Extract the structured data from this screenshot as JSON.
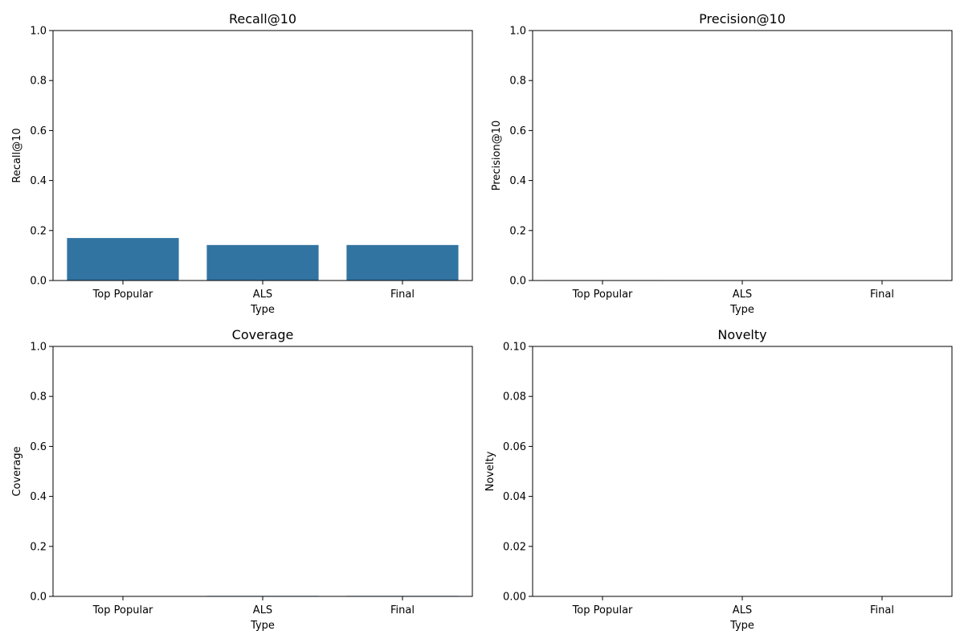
{
  "chart_data": [
    {
      "type": "bar",
      "title": "Recall@10",
      "xlabel": "Type",
      "ylabel": "Recall@10",
      "categories": [
        "Top Popular",
        "ALS",
        "Final"
      ],
      "values": [
        0.17,
        0.142,
        0.142
      ],
      "ylim": [
        0,
        1
      ],
      "yticks": [
        "0.0",
        "0.2",
        "0.4",
        "0.6",
        "0.8",
        "1.0"
      ],
      "color": "#3274a1",
      "grid": false
    },
    {
      "type": "bar",
      "title": "Precision@10",
      "xlabel": "Type",
      "ylabel": "Precision@10",
      "categories": [
        "Top Popular",
        "ALS",
        "Final"
      ],
      "values": [
        0.0017,
        0.0014,
        0.0014
      ],
      "ylim": [
        0,
        1
      ],
      "yticks": [
        "0.0",
        "0.2",
        "0.4",
        "0.6",
        "0.8",
        "1.0"
      ],
      "color": "#3274a1",
      "grid": false
    },
    {
      "type": "bar",
      "title": "Coverage",
      "xlabel": "Type",
      "ylabel": "Coverage",
      "categories": [
        "Top Popular",
        "ALS",
        "Final"
      ],
      "values": [
        0.0001,
        0.002,
        0.002
      ],
      "ylim": [
        0,
        1
      ],
      "yticks": [
        "0.0",
        "0.2",
        "0.4",
        "0.6",
        "0.8",
        "1.0"
      ],
      "color": "#3274a1",
      "grid": false
    },
    {
      "type": "bar",
      "title": "Novelty",
      "xlabel": "Type",
      "ylabel": "Novelty",
      "categories": [
        "Top Popular",
        "ALS",
        "Final"
      ],
      "values": [
        0.0,
        0.0,
        0.0
      ],
      "ylim": [
        0,
        0.1
      ],
      "yticks": [
        "0.00",
        "0.02",
        "0.04",
        "0.06",
        "0.08",
        "0.10"
      ],
      "color": "#3274a1",
      "grid": false
    }
  ]
}
